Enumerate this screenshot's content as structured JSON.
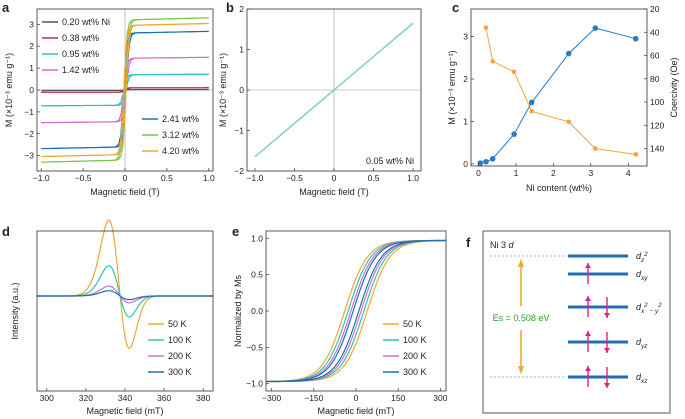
{
  "chart_data": [
    {
      "panel": "a",
      "type": "line",
      "xlabel": "Magnetic field (T)",
      "ylabel": "M (×10⁻³ emu g⁻¹)",
      "xlim": [
        -1.05,
        1.05
      ],
      "ylim": [
        -3.7,
        3.7
      ],
      "xticks": [
        "−1.0",
        "−0.5",
        "0",
        "0.5",
        "1.0"
      ],
      "yticks": [
        "−3",
        "−2",
        "−1",
        "0",
        "1",
        "2",
        "3"
      ],
      "series": [
        {
          "name": "0.20 wt% Ni",
          "color": "#555555",
          "ms": 0.02
        },
        {
          "name": "0.38 wt%",
          "color": "#c0304a",
          "ms": 0.1
        },
        {
          "name": "0.95 wt%",
          "color": "#2ec4b6",
          "ms": 0.7
        },
        {
          "name": "1.42 wt%",
          "color": "#d070c8",
          "ms": 1.45
        },
        {
          "name": "2.41 wt%",
          "color": "#1f6fb4",
          "ms": 2.6
        },
        {
          "name": "3.12 wt%",
          "color": "#7cc653",
          "ms": 3.2
        },
        {
          "name": "4.20 wt%",
          "color": "#f0a830",
          "ms": 2.95
        }
      ]
    },
    {
      "panel": "b",
      "type": "line",
      "xlabel": "Magnetic field (T)",
      "ylabel": "M (×10⁻³ emu g⁻¹)",
      "xlim": [
        -1.1,
        1.1
      ],
      "ylim": [
        -2,
        2
      ],
      "xticks": [
        "−1.0",
        "−0.5",
        "0",
        "0.5",
        "1.0"
      ],
      "yticks": [
        "−2",
        "−1",
        "0",
        "1",
        "2"
      ],
      "annotation": "0.05 wt% Ni",
      "series": [
        {
          "name": "0.05 wt% Ni",
          "color": "#7fd1b9",
          "x": [
            -1.0,
            1.0
          ],
          "y": [
            -1.65,
            1.65
          ]
        }
      ]
    },
    {
      "panel": "c",
      "type": "line",
      "xlabel": "Ni content (wt%)",
      "ylabel": "M (×10⁻³ emu g⁻¹)",
      "y2label": "Coercivity (Oe)",
      "xlim": [
        -0.2,
        4.5
      ],
      "ylim": [
        -0.05,
        3.65
      ],
      "y2lim": [
        20,
        155
      ],
      "xticks": [
        "0",
        "1",
        "2",
        "3",
        "4"
      ],
      "yticks": [
        "0",
        "1",
        "2",
        "3"
      ],
      "y2ticks": [
        "20",
        "40",
        "60",
        "80",
        "100",
        "120",
        "140"
      ],
      "series": [
        {
          "name": "M",
          "color": "#2b7bc4",
          "x": [
            0.05,
            0.2,
            0.38,
            0.95,
            1.42,
            2.41,
            3.12,
            4.2
          ],
          "y": [
            0.02,
            0.05,
            0.12,
            0.7,
            1.45,
            2.6,
            3.2,
            2.95
          ]
        },
        {
          "name": "Coercivity",
          "color": "#f4a53a",
          "x": [
            0.2,
            0.38,
            0.95,
            1.42,
            2.41,
            3.12,
            4.2
          ],
          "y": [
            36,
            65,
            74,
            108,
            117,
            140,
            145
          ]
        }
      ]
    },
    {
      "panel": "d",
      "type": "line",
      "xlabel": "Magnetic field (mT)",
      "ylabel": "Intensity (a.u.)",
      "xlim": [
        295,
        385
      ],
      "xticks": [
        "300",
        "320",
        "340",
        "360",
        "380"
      ],
      "series": [
        {
          "name": "50 K",
          "color": "#f0a830",
          "amp": 1.0
        },
        {
          "name": "100 K",
          "color": "#2ec4b6",
          "amp": 0.4
        },
        {
          "name": "200 K",
          "color": "#d070c8",
          "amp": 0.13
        },
        {
          "name": "300 K",
          "color": "#1f6fb4",
          "amp": 0.07
        }
      ]
    },
    {
      "panel": "e",
      "type": "line",
      "xlabel": "Magnetic field (mT)",
      "ylabel": "Normalized by Ms",
      "xlim": [
        -320,
        320
      ],
      "ylim": [
        -1.1,
        1.1
      ],
      "xticks": [
        "−300",
        "−150",
        "0",
        "150",
        "300"
      ],
      "yticks": [
        "−1.0",
        "−0.5",
        "0.0",
        "0.5",
        "1.0"
      ],
      "series": [
        {
          "name": "50 K",
          "color": "#f0a830",
          "hc": 40
        },
        {
          "name": "100 K",
          "color": "#2ec4b6",
          "hc": 28
        },
        {
          "name": "200 K",
          "color": "#d070c8",
          "hc": 18
        },
        {
          "name": "300 K",
          "color": "#1f6fb4",
          "hc": 10
        }
      ]
    }
  ],
  "panel_f": {
    "title": "Ni 3",
    "title_d": "d",
    "energy_label": "Es = 0.508 eV",
    "levels": [
      {
        "d": "d",
        "sub": "z",
        "sup": "2"
      },
      {
        "d": "d",
        "sub": "xy",
        "sup": ""
      },
      {
        "d": "d",
        "sub": "x",
        "sup": "2",
        "sub2": " − y",
        "sup2": "2"
      },
      {
        "d": "d",
        "sub": "yz",
        "sup": ""
      },
      {
        "d": "d",
        "sub": "xz",
        "sup": ""
      }
    ]
  },
  "panel_labels": [
    "a",
    "b",
    "c",
    "d",
    "e",
    "f"
  ]
}
